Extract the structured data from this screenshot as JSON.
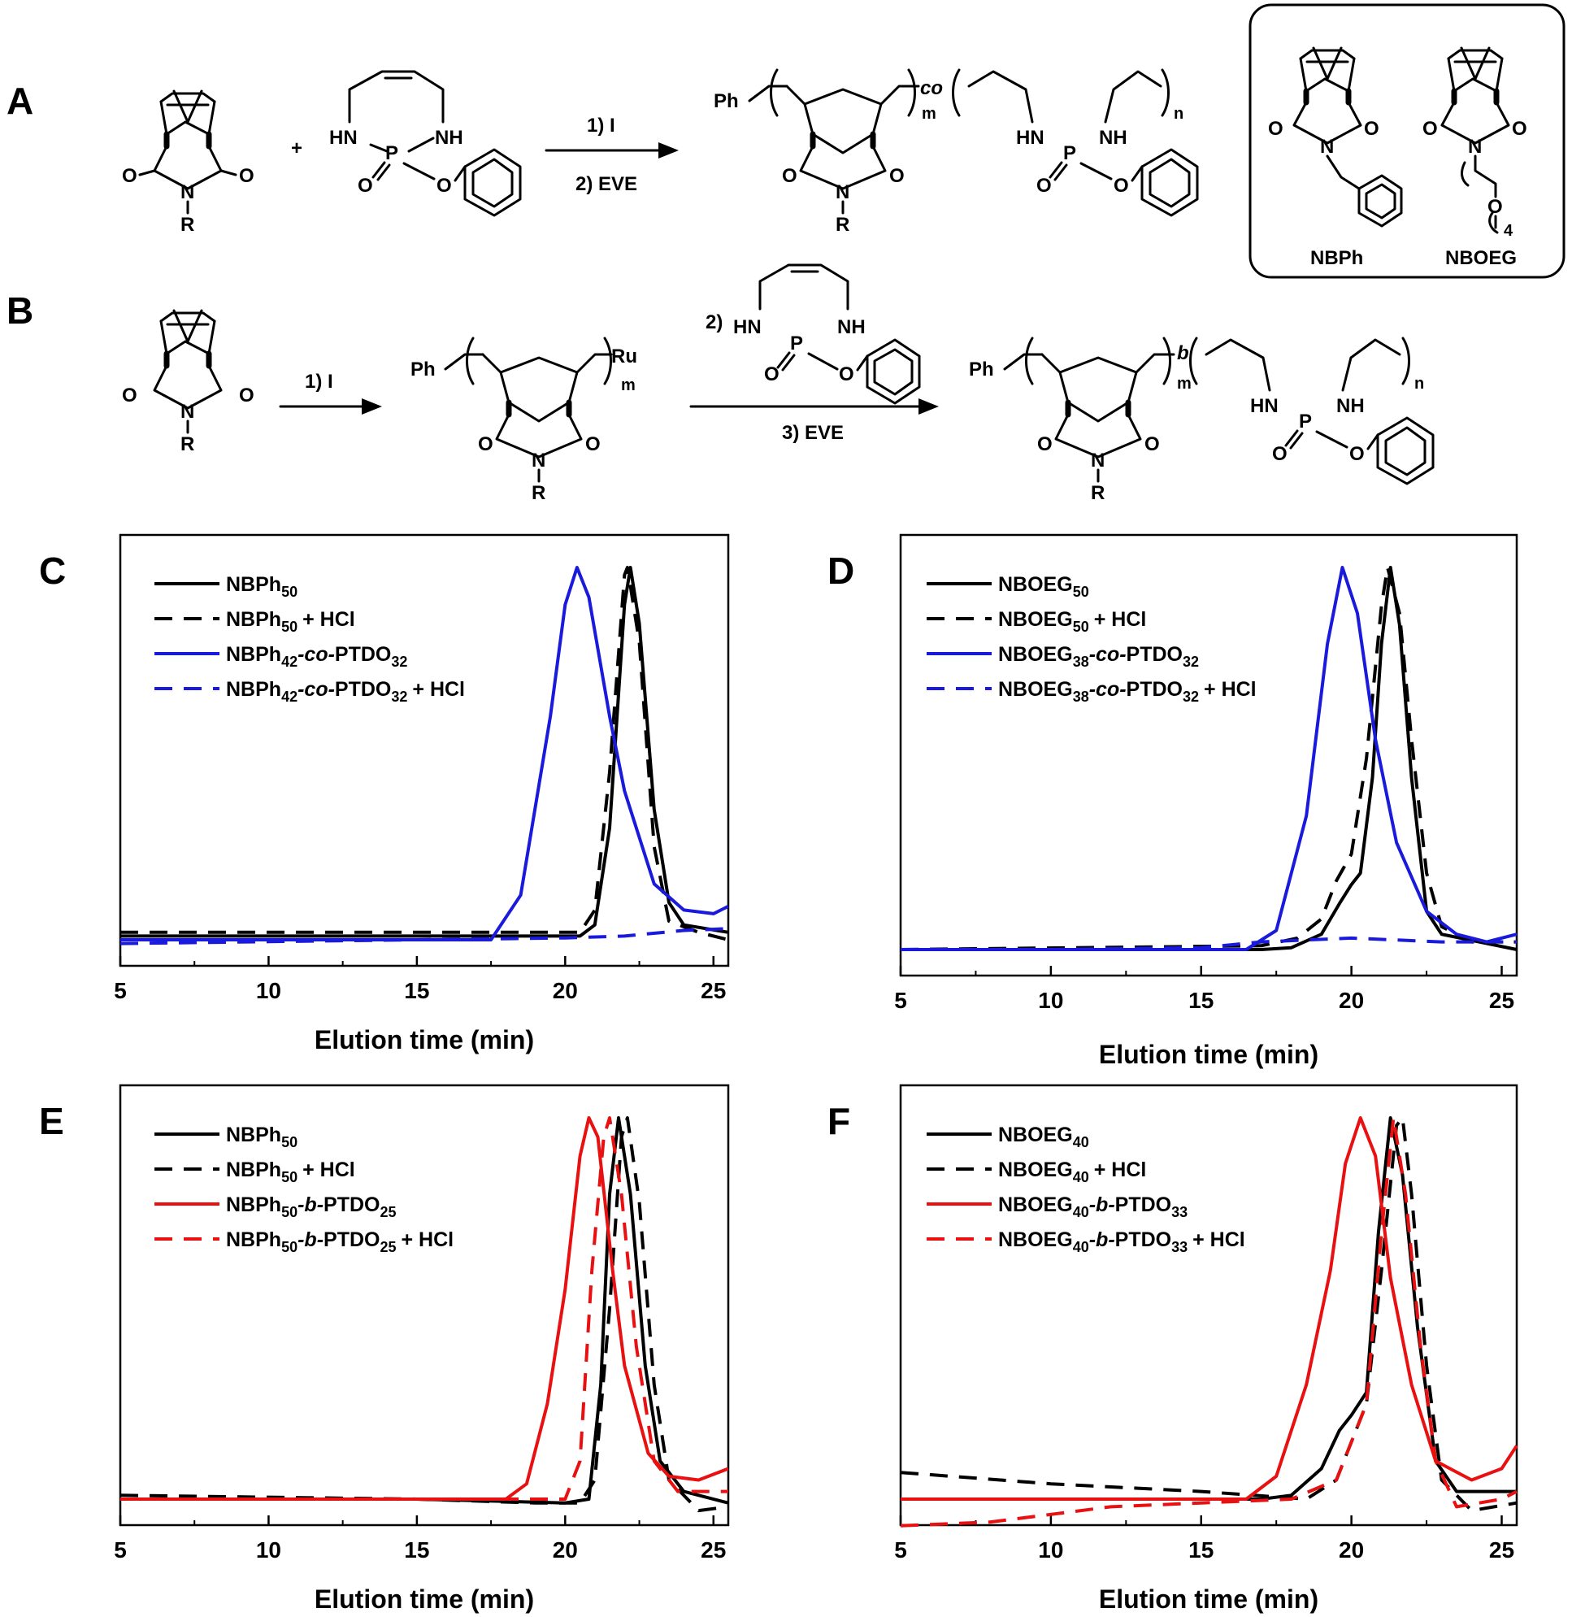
{
  "scheme": {
    "panel_A": {
      "label": "A",
      "plus": "+",
      "arrow_top": "1) I",
      "arrow_bottom": "2) EVE",
      "R": "R",
      "N": "N",
      "O": "O",
      "HN": "HN",
      "NH": "NH",
      "P": "P",
      "Ph": "Ph",
      "m": "m",
      "n": "n",
      "co": "co"
    },
    "inset": {
      "mono1": "NBPh",
      "mono2": "NBOEG",
      "subscript4": "4"
    },
    "panel_B": {
      "label": "B",
      "step1": "1) I",
      "step2": "2)",
      "step3": "3) EVE",
      "Ru": "Ru",
      "b": "b"
    }
  },
  "chart_data": [
    {
      "panel": "C",
      "type": "line",
      "xlabel": "Elution time (min)",
      "ylabel": "",
      "xlim": [
        5,
        25.5
      ],
      "xticks": [
        5,
        10,
        15,
        20,
        25
      ],
      "yaxis_ticks": false,
      "legend_position": "top-left",
      "series": [
        {
          "label_main": "NBPh",
          "label_sub": "50",
          "label_rest": "",
          "color": "#000000",
          "dashed": false,
          "points": [
            [
              5,
              0.01
            ],
            [
              15,
              0.01
            ],
            [
              20.5,
              0.01
            ],
            [
              21.0,
              0.04
            ],
            [
              21.5,
              0.3
            ],
            [
              22.0,
              0.9
            ],
            [
              22.2,
              1.0
            ],
            [
              22.5,
              0.85
            ],
            [
              23.0,
              0.35
            ],
            [
              23.5,
              0.1
            ],
            [
              24.0,
              0.04
            ],
            [
              25.5,
              0.02
            ]
          ]
        },
        {
          "label_main": "NBPh",
          "label_sub": "50",
          "label_rest": "+ HCl",
          "color": "#000000",
          "dashed": true,
          "points": [
            [
              5,
              0.02
            ],
            [
              15,
              0.02
            ],
            [
              20.5,
              0.02
            ],
            [
              21.0,
              0.08
            ],
            [
              21.5,
              0.45
            ],
            [
              22.0,
              0.98
            ],
            [
              22.1,
              1.0
            ],
            [
              22.5,
              0.8
            ],
            [
              23.0,
              0.25
            ],
            [
              23.5,
              0.05
            ],
            [
              24.5,
              0.02
            ],
            [
              25.5,
              0.0
            ]
          ]
        },
        {
          "label_main": "NBPh",
          "label_sub": "42",
          "label_mid_italic": "-co-",
          "label_main2": "PTDO",
          "label_sub2": "32",
          "label_rest": "",
          "color": "#1a1adc",
          "dashed": false,
          "points": [
            [
              5,
              0.0
            ],
            [
              17.5,
              0.0
            ],
            [
              18.5,
              0.12
            ],
            [
              19.5,
              0.6
            ],
            [
              20.0,
              0.9
            ],
            [
              20.4,
              1.0
            ],
            [
              20.8,
              0.92
            ],
            [
              21.5,
              0.6
            ],
            [
              22.0,
              0.4
            ],
            [
              23.0,
              0.15
            ],
            [
              24.0,
              0.08
            ],
            [
              25.0,
              0.07
            ],
            [
              25.5,
              0.09
            ]
          ]
        },
        {
          "label_main": "NBPh",
          "label_sub": "42",
          "label_mid_italic": "-co-",
          "label_main2": "PTDO",
          "label_sub2": "32",
          "label_rest": "+ HCl",
          "color": "#1a1adc",
          "dashed": true,
          "points": [
            [
              5,
              -0.01
            ],
            [
              10,
              -0.005
            ],
            [
              15,
              0.0
            ],
            [
              20,
              0.005
            ],
            [
              22,
              0.01
            ],
            [
              24,
              0.025
            ],
            [
              25.5,
              0.03
            ]
          ]
        }
      ]
    },
    {
      "panel": "D",
      "type": "line",
      "xlabel": "Elution time (min)",
      "ylabel": "",
      "xlim": [
        5,
        25.5
      ],
      "xticks": [
        5,
        10,
        15,
        20,
        25
      ],
      "yaxis_ticks": false,
      "legend_position": "top-left",
      "series": [
        {
          "label_main": "NBOEG",
          "label_sub": "50",
          "label_rest": "",
          "color": "#000000",
          "dashed": false,
          "points": [
            [
              5,
              0.0
            ],
            [
              17,
              0.0
            ],
            [
              18.0,
              0.005
            ],
            [
              19.0,
              0.04
            ],
            [
              19.6,
              0.12
            ],
            [
              20.0,
              0.17
            ],
            [
              20.3,
              0.2
            ],
            [
              20.7,
              0.45
            ],
            [
              21.0,
              0.8
            ],
            [
              21.3,
              1.0
            ],
            [
              21.6,
              0.85
            ],
            [
              22.0,
              0.45
            ],
            [
              22.5,
              0.1
            ],
            [
              23.0,
              0.04
            ],
            [
              25.5,
              0.0
            ]
          ]
        },
        {
          "label_main": "NBOEG",
          "label_sub": "50",
          "label_rest": "+ HCl",
          "color": "#000000",
          "dashed": true,
          "points": [
            [
              5,
              0.0
            ],
            [
              17,
              0.01
            ],
            [
              18.2,
              0.03
            ],
            [
              19.0,
              0.08
            ],
            [
              19.5,
              0.18
            ],
            [
              20.0,
              0.25
            ],
            [
              20.5,
              0.5
            ],
            [
              21.0,
              0.9
            ],
            [
              21.2,
              1.0
            ],
            [
              21.6,
              0.88
            ],
            [
              22.0,
              0.55
            ],
            [
              22.5,
              0.2
            ],
            [
              23.0,
              0.06
            ],
            [
              24.0,
              0.02
            ],
            [
              25.5,
              0.02
            ]
          ]
        },
        {
          "label_main": "NBOEG",
          "label_sub": "38",
          "label_mid_italic": "-co-",
          "label_main2": "PTDO",
          "label_sub2": "32",
          "label_rest": "",
          "color": "#1a1adc",
          "dashed": false,
          "points": [
            [
              5,
              0.0
            ],
            [
              16.5,
              0.0
            ],
            [
              17.5,
              0.05
            ],
            [
              18.5,
              0.35
            ],
            [
              19.2,
              0.8
            ],
            [
              19.7,
              1.0
            ],
            [
              20.2,
              0.88
            ],
            [
              20.8,
              0.55
            ],
            [
              21.5,
              0.28
            ],
            [
              22.5,
              0.1
            ],
            [
              23.5,
              0.04
            ],
            [
              24.5,
              0.02
            ],
            [
              25.5,
              0.04
            ]
          ]
        },
        {
          "label_main": "NBOEG",
          "label_sub": "38",
          "label_mid_italic": "-co-",
          "label_main2": "PTDO",
          "label_sub2": "32",
          "label_rest": "+ HCl",
          "color": "#1a1adc",
          "dashed": true,
          "points": [
            [
              5,
              0.0
            ],
            [
              10,
              0.0
            ],
            [
              15,
              0.005
            ],
            [
              17,
              0.02
            ],
            [
              20,
              0.03
            ],
            [
              23,
              0.02
            ],
            [
              25.5,
              0.02
            ]
          ]
        }
      ]
    },
    {
      "panel": "E",
      "type": "line",
      "xlabel": "Elution time (min)",
      "ylabel": "",
      "xlim": [
        5,
        25.5
      ],
      "xticks": [
        5,
        10,
        15,
        20,
        25
      ],
      "yaxis_ticks": false,
      "legend_position": "top-left",
      "series": [
        {
          "label_main": "NBPh",
          "label_sub": "50",
          "label_rest": "",
          "color": "#000000",
          "dashed": false,
          "points": [
            [
              5,
              0.0
            ],
            [
              15,
              0.0
            ],
            [
              20.0,
              -0.01
            ],
            [
              20.8,
              0.0
            ],
            [
              21.2,
              0.3
            ],
            [
              21.5,
              0.8
            ],
            [
              21.8,
              1.0
            ],
            [
              22.2,
              0.8
            ],
            [
              22.7,
              0.35
            ],
            [
              23.2,
              0.1
            ],
            [
              24.0,
              0.02
            ],
            [
              25.5,
              -0.01
            ]
          ]
        },
        {
          "label_main": "NBPh",
          "label_sub": "50",
          "label_rest": "+ HCl",
          "color": "#000000",
          "dashed": true,
          "points": [
            [
              5,
              0.01
            ],
            [
              15,
              0.0
            ],
            [
              19.0,
              -0.01
            ],
            [
              20.5,
              -0.01
            ],
            [
              21.0,
              0.05
            ],
            [
              21.5,
              0.5
            ],
            [
              21.9,
              0.95
            ],
            [
              22.1,
              1.0
            ],
            [
              22.5,
              0.78
            ],
            [
              23.0,
              0.3
            ],
            [
              23.5,
              0.05
            ],
            [
              24.5,
              -0.03
            ],
            [
              25.5,
              -0.02
            ]
          ]
        },
        {
          "label_main": "NBPh",
          "label_sub": "50",
          "label_mid_italic": "-b-",
          "label_main2": "PTDO",
          "label_sub2": "25",
          "label_rest": "",
          "color": "#e81010",
          "dashed": false,
          "points": [
            [
              5,
              0.0
            ],
            [
              18.0,
              0.0
            ],
            [
              18.7,
              0.04
            ],
            [
              19.4,
              0.25
            ],
            [
              20.0,
              0.55
            ],
            [
              20.5,
              0.9
            ],
            [
              20.8,
              1.0
            ],
            [
              21.1,
              0.95
            ],
            [
              21.6,
              0.6
            ],
            [
              22.0,
              0.35
            ],
            [
              22.8,
              0.12
            ],
            [
              23.5,
              0.06
            ],
            [
              24.5,
              0.05
            ],
            [
              25.5,
              0.08
            ]
          ]
        },
        {
          "label_main": "NBPh",
          "label_sub": "50",
          "label_mid_italic": "-b-",
          "label_main2": "PTDO",
          "label_sub2": "25",
          "label_rest": "+ HCl",
          "color": "#e81010",
          "dashed": true,
          "points": [
            [
              5,
              0.0
            ],
            [
              15,
              0.0
            ],
            [
              20.0,
              0.0
            ],
            [
              20.5,
              0.1
            ],
            [
              20.9,
              0.6
            ],
            [
              21.3,
              0.95
            ],
            [
              21.5,
              1.0
            ],
            [
              21.9,
              0.8
            ],
            [
              22.4,
              0.4
            ],
            [
              23.0,
              0.1
            ],
            [
              23.8,
              0.02
            ],
            [
              25.5,
              0.02
            ]
          ]
        }
      ]
    },
    {
      "panel": "F",
      "type": "line",
      "xlabel": "Elution time (min)",
      "ylabel": "",
      "xlim": [
        5,
        25.5
      ],
      "xticks": [
        5,
        10,
        15,
        20,
        25
      ],
      "yaxis_ticks": false,
      "legend_position": "top-left",
      "series": [
        {
          "label_main": "NBOEG",
          "label_sub": "40",
          "label_rest": "",
          "color": "#000000",
          "dashed": false,
          "points": [
            [
              5,
              0.0
            ],
            [
              17,
              0.0
            ],
            [
              18.0,
              0.01
            ],
            [
              19.0,
              0.08
            ],
            [
              19.6,
              0.18
            ],
            [
              20.0,
              0.22
            ],
            [
              20.5,
              0.28
            ],
            [
              20.9,
              0.7
            ],
            [
              21.3,
              1.0
            ],
            [
              21.7,
              0.85
            ],
            [
              22.2,
              0.45
            ],
            [
              22.8,
              0.1
            ],
            [
              23.5,
              0.02
            ],
            [
              25.5,
              0.02
            ]
          ]
        },
        {
          "label_main": "NBOEG",
          "label_sub": "40",
          "label_rest": "+ HCl",
          "color": "#000000",
          "dashed": true,
          "points": [
            [
              5,
              0.07
            ],
            [
              10,
              0.04
            ],
            [
              15,
              0.02
            ],
            [
              18.5,
              0.0
            ],
            [
              19.5,
              0.05
            ],
            [
              20.0,
              0.15
            ],
            [
              20.5,
              0.25
            ],
            [
              21.0,
              0.6
            ],
            [
              21.5,
              0.98
            ],
            [
              21.7,
              1.0
            ],
            [
              22.0,
              0.8
            ],
            [
              22.5,
              0.35
            ],
            [
              23.0,
              0.05
            ],
            [
              24.0,
              -0.03
            ],
            [
              25.5,
              -0.01
            ]
          ]
        },
        {
          "label_main": "NBOEG",
          "label_sub": "40",
          "label_mid_italic": "-b-",
          "label_main2": "PTDO",
          "label_sub2": "33",
          "label_rest": "",
          "color": "#e81010",
          "dashed": false,
          "points": [
            [
              5,
              0.0
            ],
            [
              16.5,
              0.0
            ],
            [
              17.5,
              0.06
            ],
            [
              18.5,
              0.3
            ],
            [
              19.3,
              0.6
            ],
            [
              19.8,
              0.88
            ],
            [
              20.3,
              1.0
            ],
            [
              20.8,
              0.9
            ],
            [
              21.3,
              0.58
            ],
            [
              22.0,
              0.3
            ],
            [
              22.8,
              0.1
            ],
            [
              24.0,
              0.05
            ],
            [
              25.0,
              0.08
            ],
            [
              25.5,
              0.14
            ]
          ]
        },
        {
          "label_main": "NBOEG",
          "label_sub": "40",
          "label_mid_italic": "-b-",
          "label_main2": "PTDO",
          "label_sub2": "33",
          "label_rest": "+ HCl",
          "color": "#e81010",
          "dashed": true,
          "points": [
            [
              5,
              -0.07
            ],
            [
              8,
              -0.06
            ],
            [
              10,
              -0.04
            ],
            [
              12,
              -0.02
            ],
            [
              15,
              -0.01
            ],
            [
              18,
              0.0
            ],
            [
              19.5,
              0.05
            ],
            [
              20.5,
              0.25
            ],
            [
              21.0,
              0.7
            ],
            [
              21.4,
              1.0
            ],
            [
              21.8,
              0.8
            ],
            [
              22.3,
              0.4
            ],
            [
              22.8,
              0.1
            ],
            [
              23.5,
              -0.02
            ],
            [
              25.0,
              0.0
            ],
            [
              25.5,
              0.02
            ]
          ]
        }
      ]
    }
  ]
}
